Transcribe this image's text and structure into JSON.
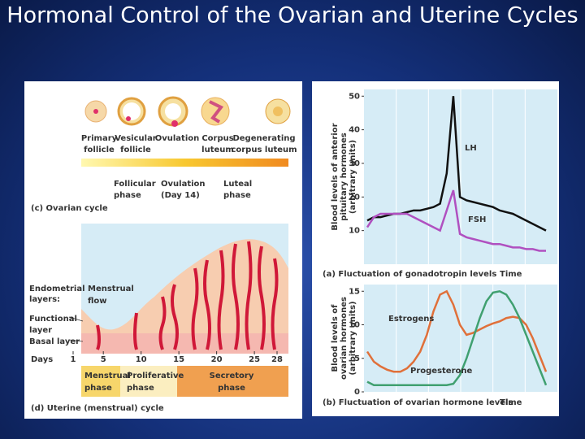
{
  "title": "Hormonal Control of the Ovarian and Uterine Cycles",
  "ovarian_cycle": {
    "stages": [
      [
        "Primary",
        "follicle"
      ],
      [
        "Vesicular",
        "follicle"
      ],
      [
        "Ovulation"
      ],
      [
        "Corpus",
        "luteum"
      ],
      [
        "Degenerating",
        "corpus luteum"
      ]
    ],
    "phases": [
      [
        "Follicular",
        "phase"
      ],
      [
        "Ovulation",
        "(Day 14)"
      ],
      [
        "Luteal",
        "phase"
      ]
    ],
    "caption": "(c) Ovarian cycle"
  },
  "uterine_cycle": {
    "layers_label": [
      "Endometrial",
      "layers:"
    ],
    "functional_layer": [
      "Functional",
      "layer"
    ],
    "basal_layer": "Basal layer",
    "menstrual_flow": [
      "Menstrual",
      "flow"
    ],
    "days_label": "Days",
    "days": [
      1,
      5,
      10,
      15,
      20,
      25,
      28
    ],
    "phases": [
      [
        "Menstrual",
        "phase"
      ],
      [
        "Proliferative",
        "phase"
      ],
      [
        "Secretory",
        "phase"
      ]
    ],
    "caption": "(d) Uterine (menstrual) cycle"
  },
  "chart_data": [
    {
      "type": "line",
      "caption": "(a) Fluctuation of gonadotropin levels",
      "x_label": "Time",
      "y_label": [
        "Blood levels of anterior",
        "pituitary hormones",
        "(arbitrary units)"
      ],
      "x": [
        1,
        2,
        3,
        4,
        5,
        6,
        7,
        8,
        9,
        10,
        11,
        12,
        13,
        14,
        15,
        16,
        17,
        18,
        19,
        20,
        21,
        22,
        23,
        24,
        25,
        26,
        27,
        28
      ],
      "xlim": [
        1,
        28
      ],
      "ylim": [
        0,
        52
      ],
      "yticks": [
        10,
        20,
        30,
        40,
        50
      ],
      "series": [
        {
          "name": "LH",
          "color": "#111111",
          "values": [
            13,
            14,
            14,
            14.5,
            15,
            15,
            15.5,
            16,
            16,
            16.5,
            17,
            18,
            27,
            50,
            20,
            19,
            18.5,
            18,
            17.5,
            17,
            16,
            15.5,
            15,
            14,
            13,
            12,
            11,
            10
          ]
        },
        {
          "name": "FSH",
          "color": "#b050c0",
          "values": [
            11,
            14,
            15,
            15,
            15,
            15,
            15,
            14,
            13,
            12,
            11,
            10,
            16,
            22,
            9,
            8,
            7.5,
            7,
            6.5,
            6,
            6,
            5.5,
            5,
            5,
            4.5,
            4.5,
            4,
            4
          ]
        }
      ]
    },
    {
      "type": "line",
      "caption": "(b) Fluctuation of ovarian hormone levels",
      "x_label": "Time",
      "y_label": [
        "Blood levels of",
        "ovarian hormones",
        "(arbitrary units)"
      ],
      "x": [
        1,
        2,
        3,
        4,
        5,
        6,
        7,
        8,
        9,
        10,
        11,
        12,
        13,
        14,
        15,
        16,
        17,
        18,
        19,
        20,
        21,
        22,
        23,
        24,
        25,
        26,
        27,
        28
      ],
      "xlim": [
        1,
        28
      ],
      "ylim": [
        0,
        16
      ],
      "yticks": [
        0,
        5,
        10,
        15
      ],
      "series": [
        {
          "name": "Estrogens",
          "color": "#e0703a",
          "values": [
            6,
            4.5,
            3.8,
            3.3,
            3,
            3,
            3.5,
            4.5,
            6,
            8.5,
            12,
            14.5,
            15,
            13,
            10,
            8.5,
            8.8,
            9.3,
            9.8,
            10.2,
            10.5,
            11,
            11.2,
            11,
            10,
            8,
            5.5,
            3
          ]
        },
        {
          "name": "Progesterone",
          "color": "#40a070",
          "values": [
            1.5,
            1,
            1,
            1,
            1,
            1,
            1,
            1,
            1,
            1,
            1,
            1,
            1,
            1.2,
            2.5,
            5,
            8,
            11,
            13.5,
            14.8,
            15,
            14.5,
            13,
            11,
            8.5,
            6,
            3.5,
            1
          ]
        }
      ]
    }
  ]
}
